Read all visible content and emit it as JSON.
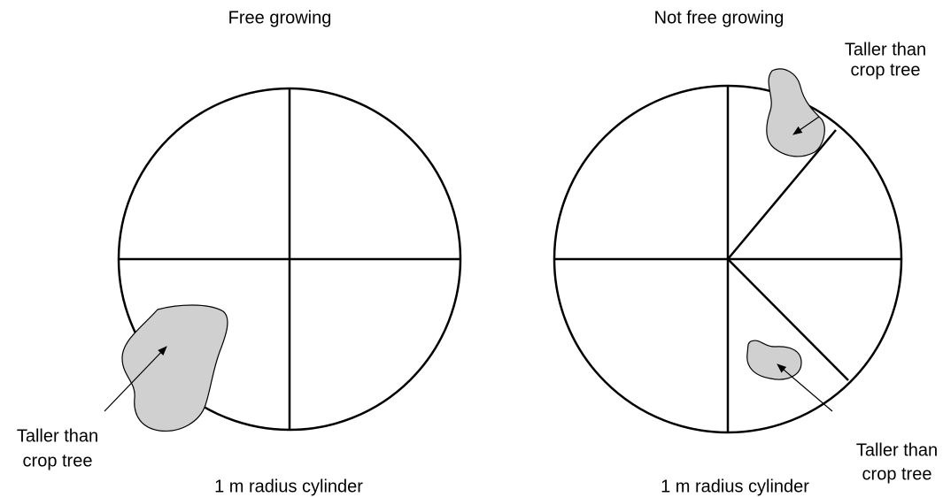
{
  "panels": [
    {
      "title": "Free growing",
      "caption": "1 m radius cylinder",
      "labels": [
        {
          "lines": [
            "Taller than",
            "crop tree"
          ]
        }
      ]
    },
    {
      "title": "Not free growing",
      "caption": "1 m radius cylinder",
      "labels": [
        {
          "lines": [
            "Taller than",
            "crop tree"
          ]
        },
        {
          "lines": [
            "Taller than",
            "crop tree"
          ]
        }
      ]
    }
  ]
}
